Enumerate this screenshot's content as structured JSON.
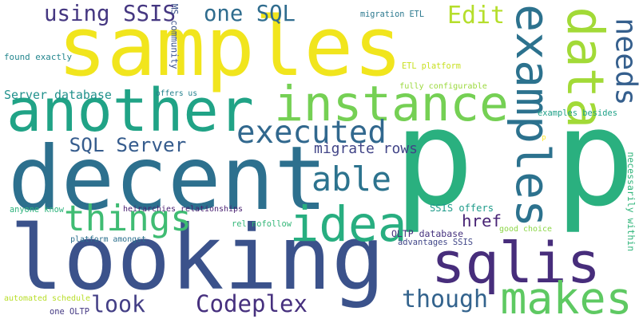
{
  "cloud": {
    "background": "#ffffff",
    "words": [
      {
        "text": "samples",
        "color": "#f1e51d",
        "orientation": "horizontal"
      },
      {
        "text": "p p",
        "color": "#2ab07f",
        "orientation": "horizontal"
      },
      {
        "text": "decent",
        "color": "#2d708e",
        "orientation": "horizontal"
      },
      {
        "text": "looking",
        "color": "#3b528b",
        "orientation": "horizontal"
      },
      {
        "text": "another",
        "color": "#20a386",
        "orientation": "horizontal"
      },
      {
        "text": "instance",
        "color": "#75d054",
        "orientation": "horizontal"
      },
      {
        "text": "sqlis",
        "color": "#472d7b",
        "orientation": "horizontal"
      },
      {
        "text": "examples",
        "color": "#2c728e",
        "orientation": "vertical"
      },
      {
        "text": "data",
        "color": "#a2da37",
        "orientation": "vertical"
      },
      {
        "text": "needs",
        "color": "#355f8d",
        "orientation": "vertical"
      },
      {
        "text": "makes",
        "color": "#5ec962",
        "orientation": "horizontal"
      },
      {
        "text": "idea",
        "color": "#28ae80",
        "orientation": "horizontal"
      },
      {
        "text": "things",
        "color": "#3fbc73",
        "orientation": "horizontal"
      },
      {
        "text": "able",
        "color": "#2c738e",
        "orientation": "horizontal"
      },
      {
        "text": "executed",
        "color": "#31688e",
        "orientation": "horizontal"
      },
      {
        "text": "using SSIS",
        "color": "#453781",
        "orientation": "horizontal"
      },
      {
        "text": "one SQL",
        "color": "#2f6c8e",
        "orientation": "horizontal"
      },
      {
        "text": "Edit",
        "color": "#b5de2b",
        "orientation": "horizontal"
      },
      {
        "text": "Codeplex",
        "color": "#46307e",
        "orientation": "horizontal"
      },
      {
        "text": "SQL Server",
        "color": "#365c8d",
        "orientation": "horizontal"
      },
      {
        "text": "href",
        "color": "#482475",
        "orientation": "horizontal"
      },
      {
        "text": "though",
        "color": "#33638d",
        "orientation": "horizontal"
      },
      {
        "text": "look",
        "color": "#433e85",
        "orientation": "horizontal"
      },
      {
        "text": "migrate rows",
        "color": "#414487",
        "orientation": "horizontal"
      },
      {
        "text": "Server database",
        "color": "#21918c",
        "orientation": "horizontal"
      },
      {
        "text": "necessarily within",
        "color": "#31b57b",
        "orientation": "vertical"
      },
      {
        "text": "MS community",
        "color": "#3b528b",
        "orientation": "vertical"
      },
      {
        "text": "migration ETL",
        "color": "#2a788e",
        "orientation": "horizontal"
      },
      {
        "text": "found exactly",
        "color": "#24868e",
        "orientation": "horizontal"
      },
      {
        "text": "ETL platform",
        "color": "#c8e020",
        "orientation": "horizontal"
      },
      {
        "text": "fully configurable",
        "color": "#9bd93c",
        "orientation": "horizontal"
      },
      {
        "text": "offers us",
        "color": "#26828e",
        "orientation": "horizontal"
      },
      {
        "text": "examples besides",
        "color": "#1fa188",
        "orientation": "horizontal"
      },
      {
        "text": "p",
        "color": "#fde725",
        "orientation": "horizontal"
      },
      {
        "text": "anyone know",
        "color": "#2eb37c",
        "orientation": "horizontal"
      },
      {
        "text": "heirarchies relationships",
        "color": "#481f70",
        "orientation": "horizontal"
      },
      {
        "text": "SSIS offers",
        "color": "#1e9b8a",
        "orientation": "horizontal"
      },
      {
        "text": "rel nofollow",
        "color": "#35b779",
        "orientation": "horizontal"
      },
      {
        "text": "OLTP database",
        "color": "#46327e",
        "orientation": "horizontal"
      },
      {
        "text": "good choice",
        "color": "#8bd646",
        "orientation": "horizontal"
      },
      {
        "text": "platform amongst",
        "color": "#2d708e",
        "orientation": "horizontal"
      },
      {
        "text": "advantages SSIS",
        "color": "#404688",
        "orientation": "horizontal"
      },
      {
        "text": "automated schedule",
        "color": "#b8de29",
        "orientation": "horizontal"
      },
      {
        "text": "one OLTP",
        "color": "#443983",
        "orientation": "horizontal"
      }
    ]
  }
}
